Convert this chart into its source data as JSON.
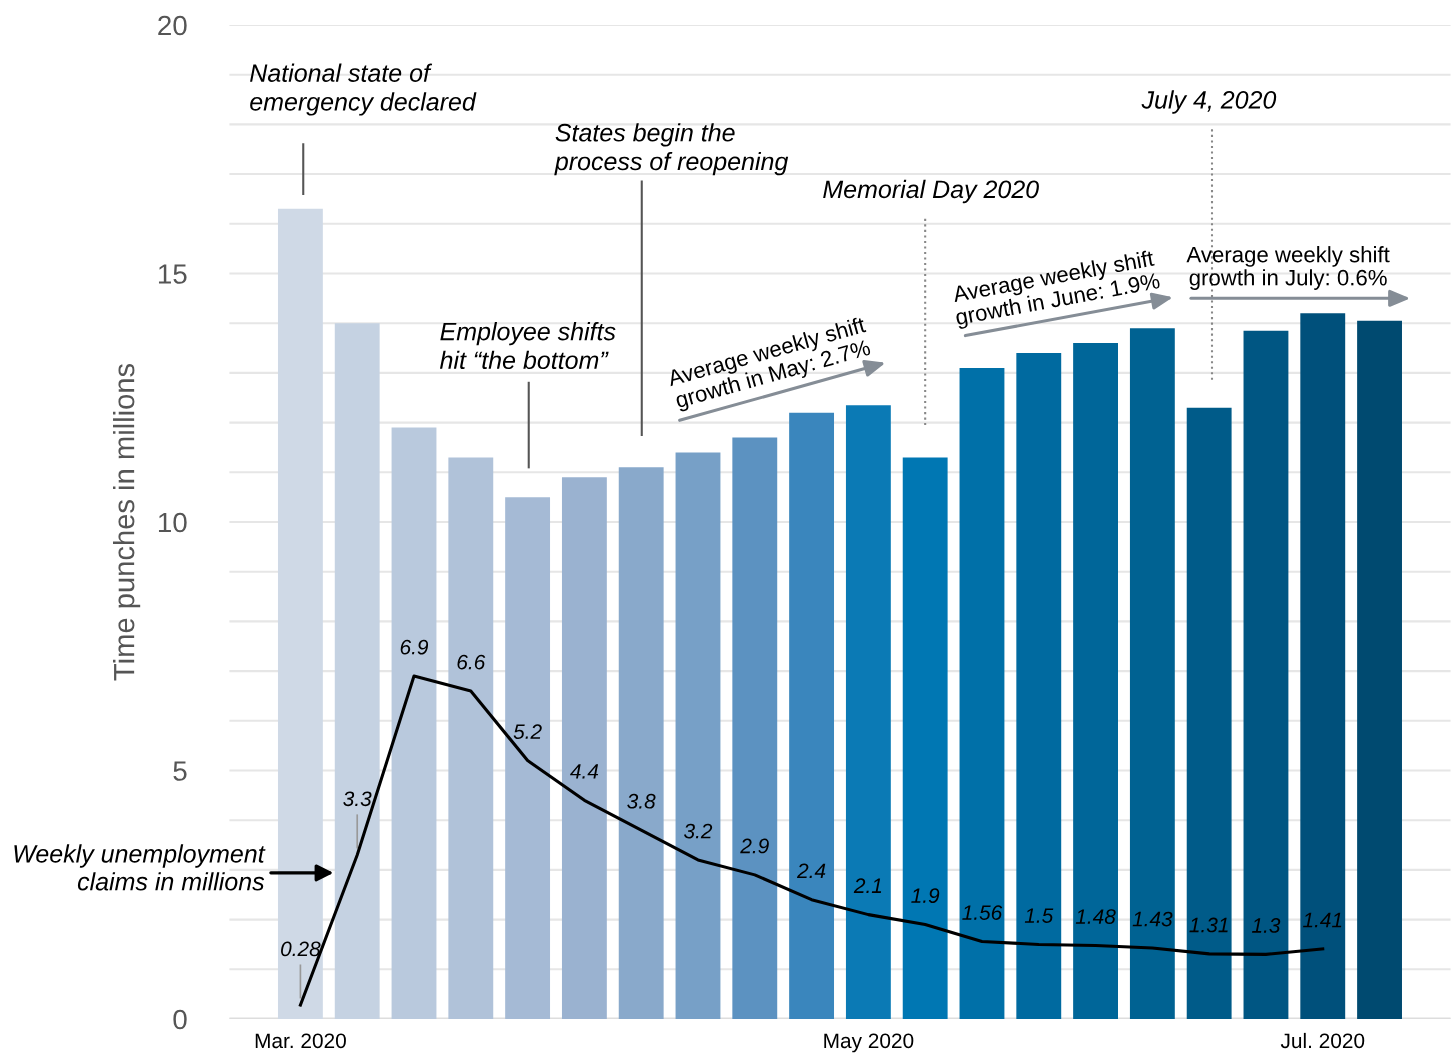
{
  "chart_data": {
    "type": "bar",
    "ylabel": "Time punches in millions",
    "categories": [
      "Mar. 2020",
      null,
      null,
      null,
      null,
      null,
      null,
      null,
      null,
      null,
      "May 2020",
      null,
      null,
      null,
      null,
      null,
      null,
      null,
      "Jul. 2020",
      null
    ],
    "series": [
      {
        "colors": [
          "#cfd9e6",
          "#c5d2e2",
          "#b9c9dd",
          "#b0c2d9",
          "#a5bad5",
          "#9ab2d0",
          "#89a9cb",
          "#77a0c7",
          "#5c92c1",
          "#3a86bd",
          "#0b7ab5",
          "#0077b3",
          "#0070a8",
          "#006aa0",
          "#006699",
          "#006292",
          "#005b89",
          "#005683",
          "#00507b",
          "#004a70"
        ],
        "values": [
          16.3,
          14.0,
          11.9,
          11.3,
          10.5,
          10.9,
          11.1,
          11.4,
          11.7,
          12.2,
          12.35,
          11.3,
          13.1,
          13.4,
          13.6,
          13.9,
          12.3,
          13.85,
          14.2,
          14.05
        ]
      },
      {
        "type": "line",
        "name": "Weekly unemployment claims in millions",
        "color": "#000000",
        "values": [
          0.28,
          3.3,
          6.9,
          6.6,
          5.2,
          4.4,
          3.8,
          3.2,
          2.9,
          2.4,
          2.1,
          1.9,
          1.56,
          1.5,
          1.48,
          1.43,
          1.31,
          1.3,
          1.41,
          null
        ],
        "value_labels": [
          "0.28",
          "3.3",
          "6.9",
          "6.6",
          "5.2",
          "4.4",
          "3.8",
          "3.2",
          "2.9",
          "2.4",
          "2.1",
          "1.9",
          "1.56",
          "1.5",
          "1.48",
          "1.43",
          "1.31",
          "1.3",
          "1.41",
          null
        ]
      }
    ],
    "ylim": [
      0,
      20
    ],
    "yticks": [
      0,
      {
        "value": 1,
        "label": null
      },
      {
        "value": 2,
        "label": null
      },
      {
        "value": 3,
        "label": null
      },
      {
        "value": 4,
        "label": null
      },
      5,
      {
        "value": 6,
        "label": null
      },
      {
        "value": 7,
        "label": null
      },
      {
        "value": 8,
        "label": null
      },
      {
        "value": 9,
        "label": null
      },
      10,
      {
        "value": 11,
        "label": null
      },
      {
        "value": 12,
        "label": null
      },
      {
        "value": 13,
        "label": null
      },
      {
        "value": 14,
        "label": null
      },
      15,
      {
        "value": 16,
        "label": null
      },
      {
        "value": 17,
        "label": null
      },
      {
        "value": 18,
        "label": null
      },
      {
        "value": 19,
        "label": null
      },
      20
    ],
    "grid": "y",
    "annotations": [
      "National state of emergency declared",
      "Employee shifts hit “the bottom”",
      "States begin the process of reopening",
      "Memorial Day 2020",
      "July 4, 2020",
      "Average weekly shift growth in May: 2.7%",
      "Average weekly shift growth in June: 1.9%",
      "Average weekly shift growth in July: 0.6%"
    ]
  }
}
